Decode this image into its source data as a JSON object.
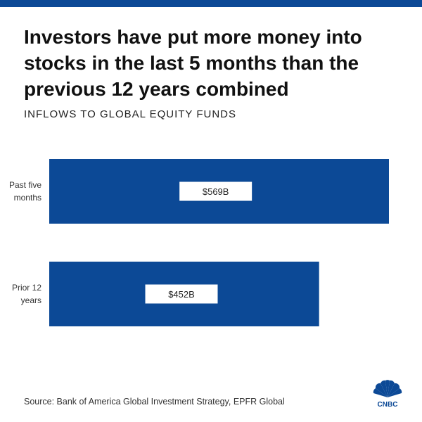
{
  "headline": "Investors have put more money into stocks in the last 5 months than the previous 12 years combined",
  "subtitle": "INFLOWS TO GLOBAL EQUITY FUNDS",
  "source": "Source: Bank of America Global Investment Strategy, EPFR Global",
  "logo_text": "CNBC",
  "colors": {
    "bar": "#0c4996",
    "top_bar": "#0c4996",
    "label_box": "#ffffff"
  },
  "chart_data": {
    "type": "bar",
    "orientation": "horizontal",
    "title": "INFLOWS TO GLOBAL EQUITY FUNDS",
    "categories": [
      [
        "Past five",
        "months"
      ],
      [
        "Prior 12",
        "years"
      ]
    ],
    "values": [
      569,
      452
    ],
    "value_labels": [
      "$569B",
      "$452B"
    ],
    "unit": "$B",
    "xlim": [
      0,
      569
    ],
    "grid": false,
    "legend": "none"
  }
}
